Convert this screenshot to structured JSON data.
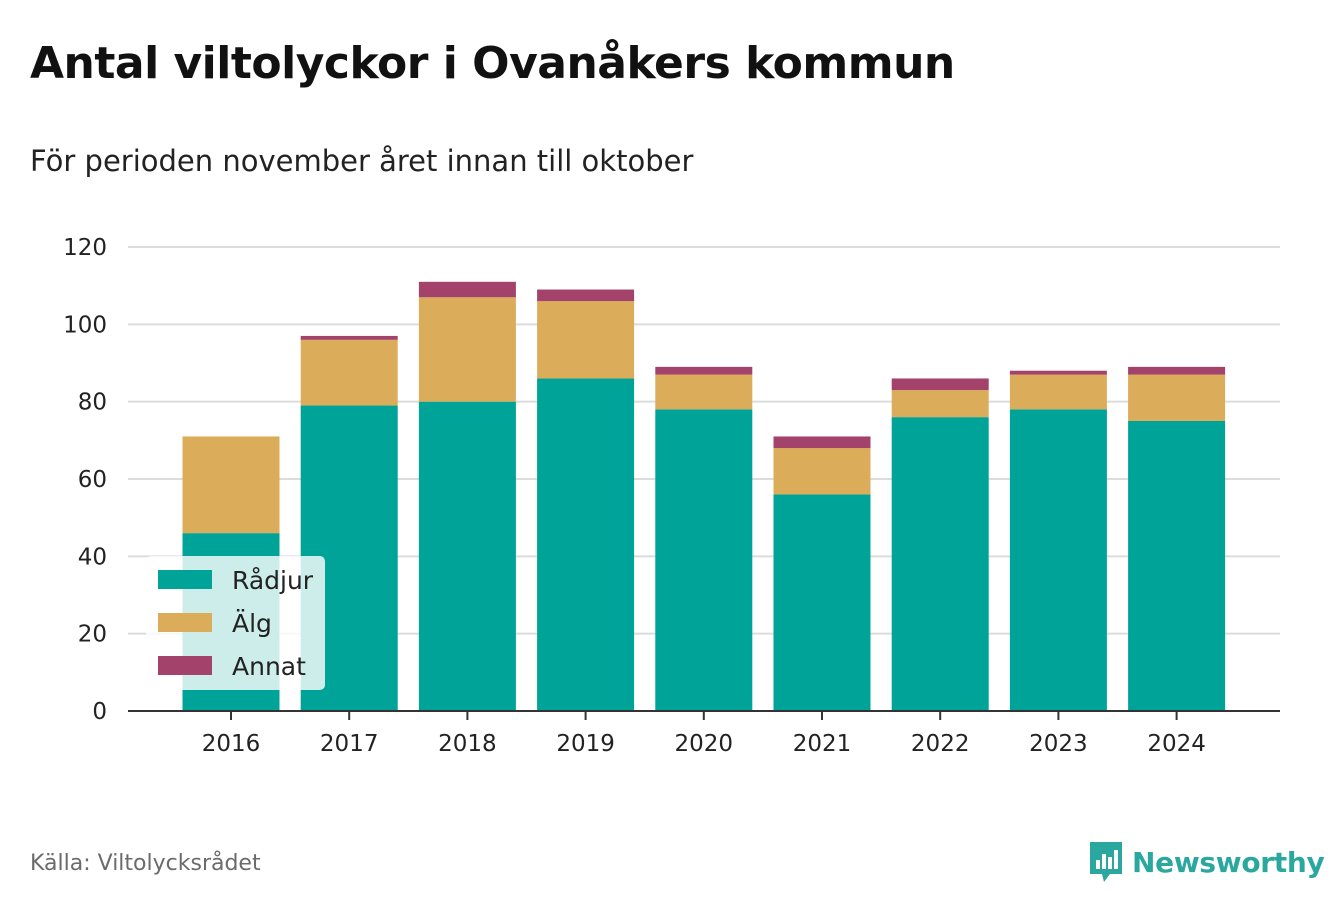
{
  "title": "Antal viltolyckor i Ovanåkers kommun",
  "subtitle": "För perioden november året innan till oktober",
  "source": "Källa: Viltolycksrådet",
  "brand": "Newsworthy",
  "colors": {
    "Rådjur": "#00a398",
    "Älg": "#dbac5a",
    "Annat": "#a3426a",
    "brand": "#2aa8a0"
  },
  "chart_data": {
    "type": "bar",
    "stacked": true,
    "categories": [
      "2016",
      "2017",
      "2018",
      "2019",
      "2020",
      "2021",
      "2022",
      "2023",
      "2024"
    ],
    "series": [
      {
        "name": "Rådjur",
        "values": [
          46,
          79,
          80,
          86,
          78,
          56,
          76,
          78,
          75
        ]
      },
      {
        "name": "Älg",
        "values": [
          25,
          17,
          27,
          20,
          9,
          12,
          7,
          9,
          12
        ]
      },
      {
        "name": "Annat",
        "values": [
          0,
          1,
          4,
          3,
          2,
          3,
          3,
          1,
          2
        ]
      }
    ],
    "ylim": [
      0,
      120
    ],
    "yticks": [
      0,
      20,
      40,
      60,
      80,
      100,
      120
    ],
    "grid": true,
    "legend_position": "bottom-left"
  }
}
